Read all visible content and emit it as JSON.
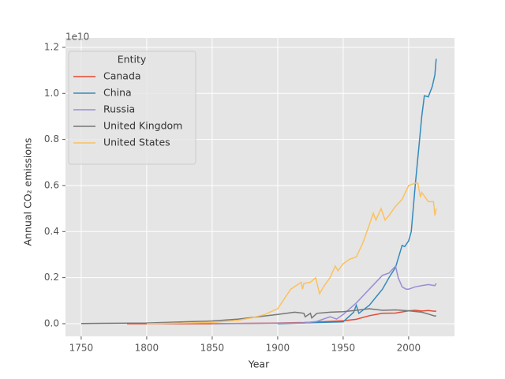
{
  "chart_data": {
    "type": "line",
    "x_label": "Year",
    "y_label": "Annual CO₂ emissions",
    "y_offset_label": "1e10",
    "legend_title": "Entity",
    "legend_position": "upper left",
    "grid": true,
    "xlim": [
      1738,
      2035
    ],
    "xticks": [
      1750,
      1800,
      1850,
      1900,
      1950,
      2000
    ],
    "ylim": [
      -0.055,
      1.241
    ],
    "yticks": [
      {
        "value": 0,
        "label": "0.0"
      },
      0.2,
      0.4,
      0.6,
      0.8,
      {
        "value": 1,
        "label": "1.0"
      },
      1.2
    ],
    "series": [
      {
        "name": "Canada",
        "color": "#E24A33",
        "x": [
          1785,
          1850,
          1900,
          1920,
          1950,
          1960,
          1970,
          1980,
          1990,
          2000,
          2005,
          2010,
          2015,
          2020,
          2021
        ],
        "values": [
          0,
          0,
          0.003,
          0.005,
          0.013,
          0.019,
          0.035,
          0.045,
          0.046,
          0.056,
          0.058,
          0.055,
          0.057,
          0.054,
          0.055
        ]
      },
      {
        "name": "China",
        "color": "#348ABD",
        "x": [
          1900,
          1950,
          1958,
          1960,
          1962,
          1970,
          1975,
          1980,
          1985,
          1990,
          1995,
          1997,
          2000,
          2002,
          2005,
          2008,
          2010,
          2012,
          2015,
          2018,
          2020,
          2021
        ],
        "values": [
          0,
          0.008,
          0.05,
          0.08,
          0.045,
          0.08,
          0.115,
          0.15,
          0.2,
          0.245,
          0.34,
          0.335,
          0.36,
          0.4,
          0.6,
          0.78,
          0.9,
          0.99,
          0.985,
          1.03,
          1.08,
          1.15
        ]
      },
      {
        "name": "Russia",
        "color": "#988ED5",
        "x": [
          1850,
          1900,
          1920,
          1930,
          1940,
          1945,
          1950,
          1960,
          1970,
          1980,
          1985,
          1990,
          1992,
          1995,
          1998,
          2000,
          2005,
          2010,
          2015,
          2020,
          2021
        ],
        "values": [
          0,
          0.002,
          0.003,
          0.01,
          0.03,
          0.02,
          0.04,
          0.09,
          0.15,
          0.21,
          0.22,
          0.25,
          0.2,
          0.16,
          0.15,
          0.15,
          0.16,
          0.165,
          0.17,
          0.165,
          0.175
        ]
      },
      {
        "name": "United Kingdom",
        "color": "#777777",
        "x": [
          1750,
          1800,
          1850,
          1870,
          1900,
          1913,
          1920,
          1921,
          1925,
          1926,
          1930,
          1940,
          1950,
          1960,
          1970,
          1980,
          1990,
          2000,
          2010,
          2015,
          2020,
          2021
        ],
        "values": [
          0.001,
          0.003,
          0.012,
          0.02,
          0.04,
          0.05,
          0.045,
          0.03,
          0.045,
          0.025,
          0.045,
          0.05,
          0.052,
          0.058,
          0.065,
          0.058,
          0.06,
          0.056,
          0.05,
          0.042,
          0.033,
          0.035
        ]
      },
      {
        "name": "United States",
        "color": "#FBC15E",
        "x": [
          1800,
          1850,
          1870,
          1880,
          1890,
          1900,
          1910,
          1918,
          1919,
          1920,
          1925,
          1929,
          1932,
          1935,
          1940,
          1944,
          1946,
          1950,
          1955,
          1960,
          1965,
          1970,
          1973,
          1975,
          1979,
          1982,
          1985,
          1990,
          1995,
          2000,
          2005,
          2007,
          2009,
          2010,
          2015,
          2019,
          2020,
          2021
        ],
        "values": [
          0,
          0.005,
          0.015,
          0.025,
          0.04,
          0.065,
          0.15,
          0.18,
          0.15,
          0.175,
          0.18,
          0.2,
          0.13,
          0.16,
          0.2,
          0.25,
          0.23,
          0.26,
          0.28,
          0.29,
          0.35,
          0.43,
          0.48,
          0.45,
          0.5,
          0.45,
          0.47,
          0.51,
          0.54,
          0.6,
          0.61,
          0.61,
          0.55,
          0.57,
          0.53,
          0.53,
          0.47,
          0.5
        ]
      }
    ]
  }
}
